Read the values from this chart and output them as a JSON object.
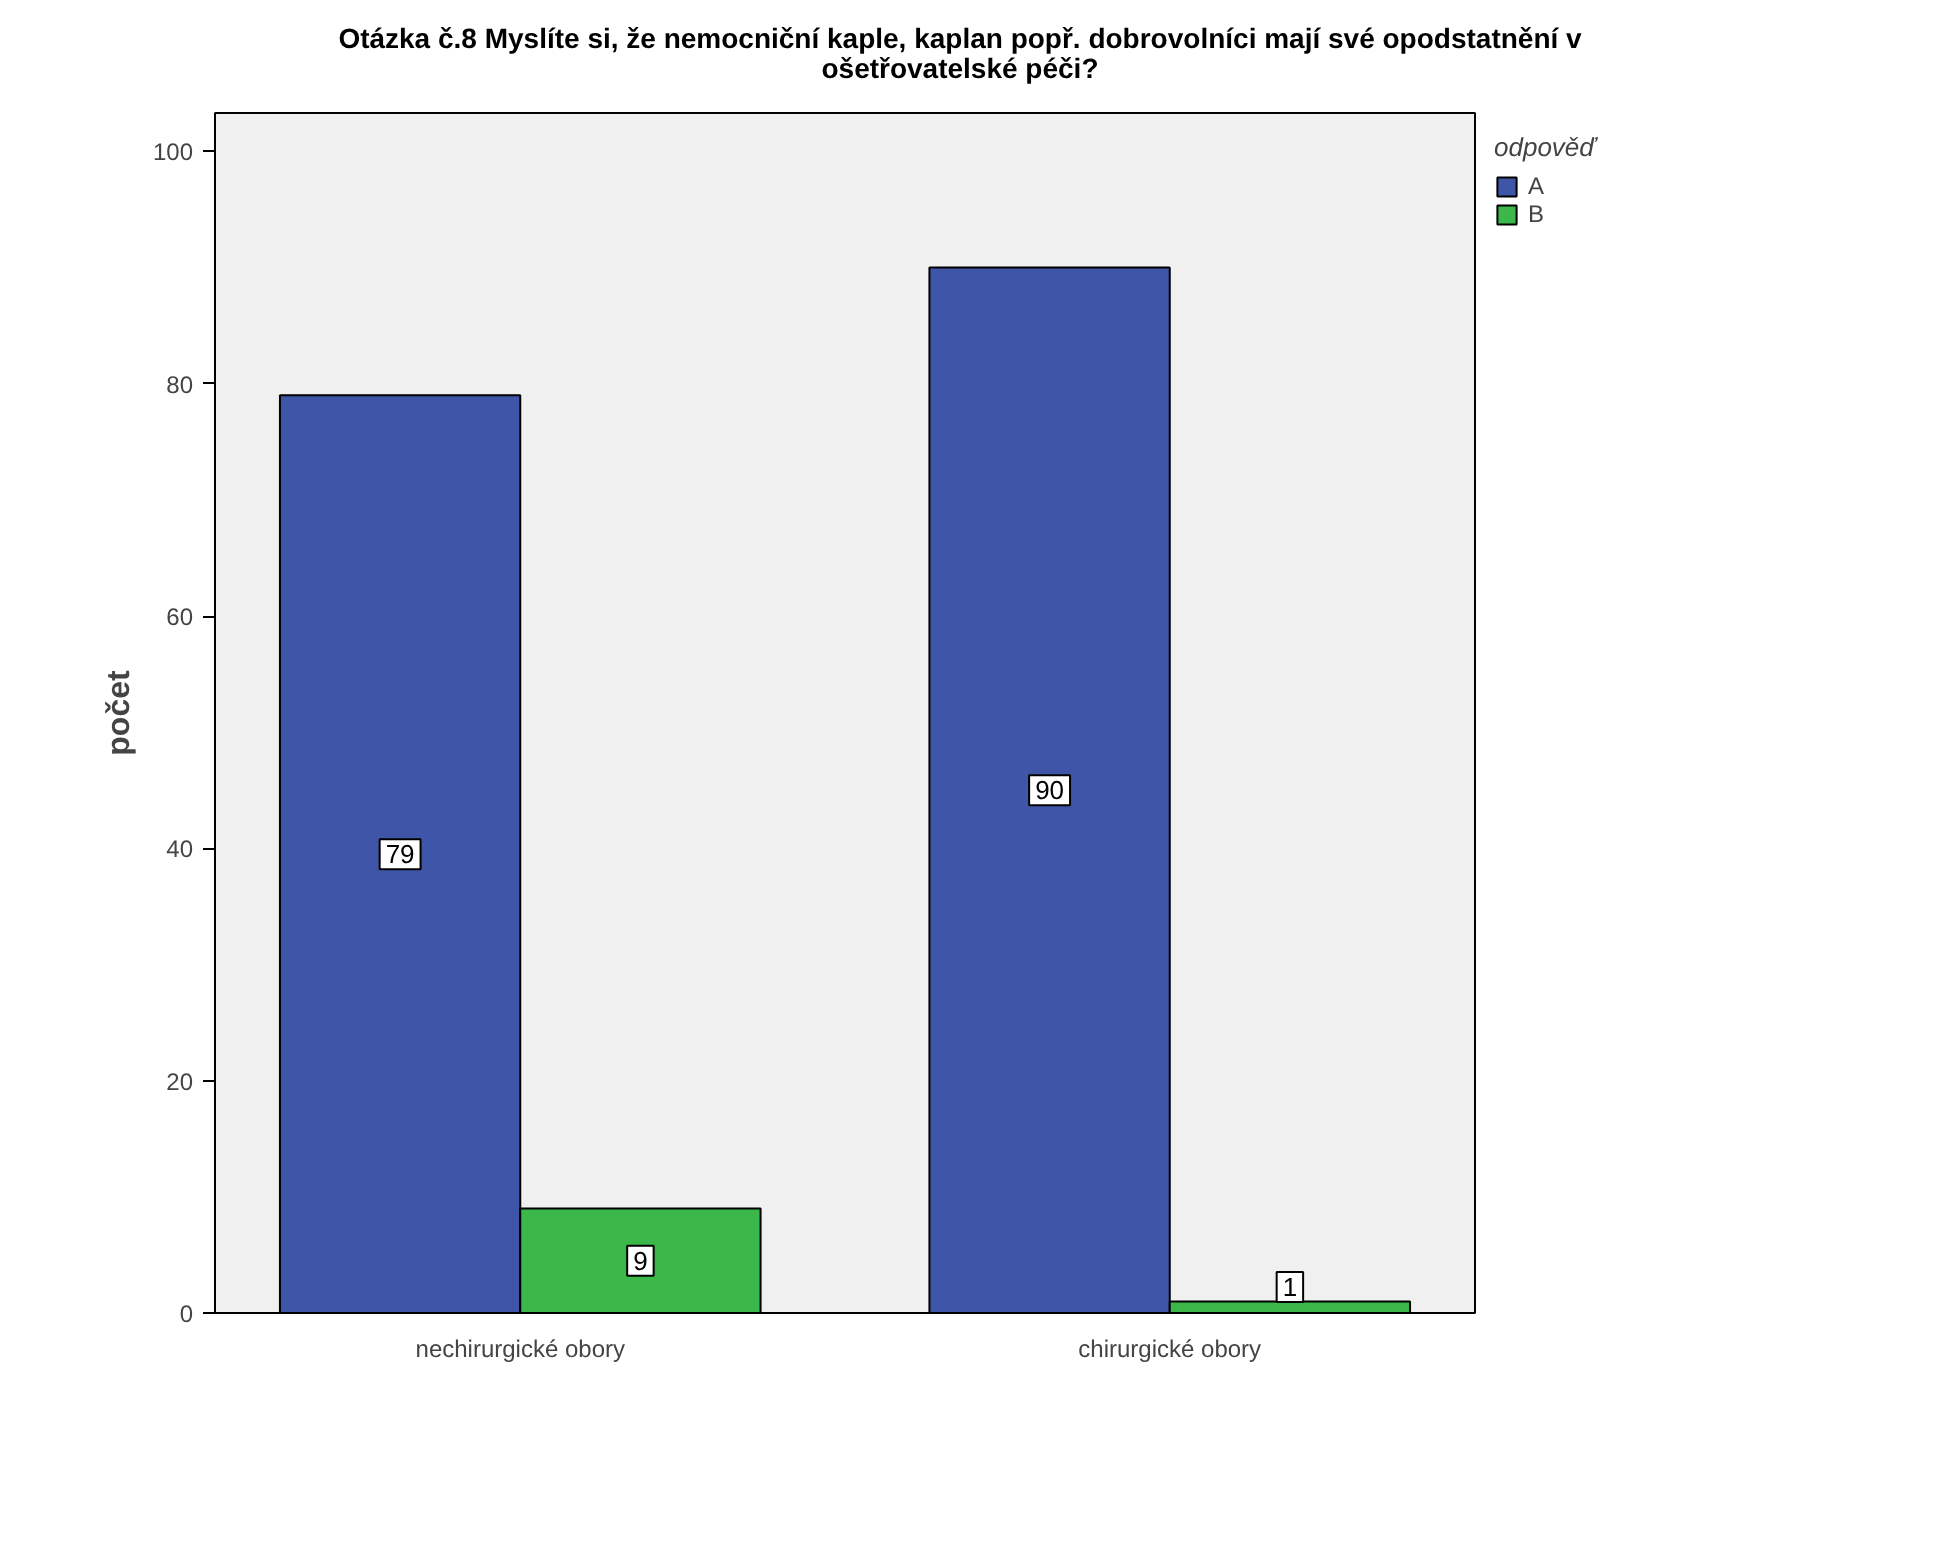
{
  "chart_data": {
    "type": "bar",
    "title": "Otázka č.8 Myslíte si, že nemocniční kaple, kaplan popř. dobrovolníci mají své opodstatnění v\nošetřovatelské péči?",
    "ylabel": "počet",
    "legend_title": "odpověď",
    "categories": [
      "nechirurgické obory",
      "chirurgické obory"
    ],
    "series": [
      {
        "name": "A",
        "color": "#3f55a7",
        "values": [
          79,
          90
        ]
      },
      {
        "name": "B",
        "color": "#3cb84a",
        "values": [
          9,
          1
        ]
      }
    ],
    "ylim": [
      0,
      103.3
    ],
    "yticks": [
      0,
      20,
      40,
      60,
      80,
      100
    ],
    "grid": false,
    "legend": "top right",
    "data_labels": true
  }
}
